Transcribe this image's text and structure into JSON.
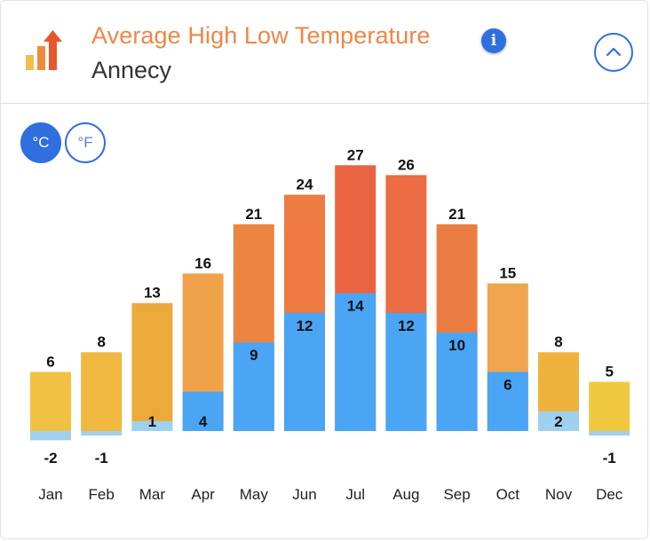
{
  "header": {
    "title": "Average High Low Temperature",
    "subtitle": "Annecy",
    "info_icon": "i"
  },
  "units": {
    "celsius": "°C",
    "fahrenheit": "°F",
    "selected": "celsius"
  },
  "colors": {
    "low_bar": "#4aa5f4",
    "low_bar_cold": "#9fd0f0",
    "title": "#ee8647",
    "accent": "#2f6fe0"
  },
  "chart_data": {
    "type": "bar",
    "title": "Average High Low Temperature",
    "categories": [
      "Jan",
      "Feb",
      "Mar",
      "Apr",
      "May",
      "Jun",
      "Jul",
      "Aug",
      "Sep",
      "Oct",
      "Nov",
      "Dec"
    ],
    "series": [
      {
        "name": "High",
        "values": [
          6,
          8,
          13,
          16,
          21,
          24,
          27,
          26,
          21,
          15,
          8,
          5
        ],
        "colors": [
          "#f0c142",
          "#f0b840",
          "#ecaa3b",
          "#f0a24a",
          "#ec8442",
          "#ed7b42",
          "#ea6442",
          "#ec6c44",
          "#ec7d42",
          "#f0a54e",
          "#efb33c",
          "#f0c840"
        ]
      },
      {
        "name": "Low",
        "values": [
          -2,
          -1,
          1,
          4,
          9,
          12,
          14,
          12,
          10,
          6,
          2,
          -1
        ]
      }
    ],
    "unit": "°C"
  }
}
